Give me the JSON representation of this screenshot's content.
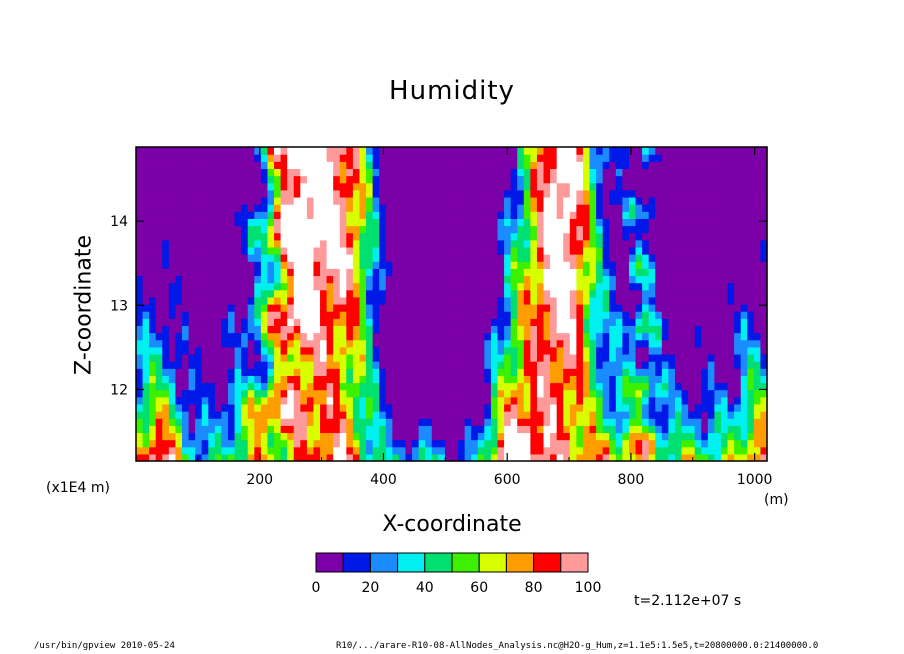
{
  "chart_data": {
    "type": "heatmap",
    "title": "Humidity",
    "xlabel": "X-coordinate",
    "ylabel": "Z-coordinate",
    "x_unit": "(m)",
    "y_scale_note": "(x1E4 m)",
    "xlim": [
      0,
      1020
    ],
    "ylim": [
      11.15,
      14.88
    ],
    "x_ticks": [
      200,
      400,
      600,
      800,
      1000
    ],
    "y_ticks": [
      12,
      13,
      14
    ],
    "colorbar": {
      "levels": [
        0,
        10,
        20,
        30,
        40,
        50,
        60,
        70,
        80,
        90,
        100
      ],
      "tick_labels": [
        "0",
        "20",
        "40",
        "60",
        "80",
        "100"
      ],
      "colors": [
        "#7b00a8",
        "#0018e8",
        "#1a8cff",
        "#00f0f0",
        "#00e070",
        "#3cf000",
        "#d8ff00",
        "#ff9c00",
        "#ff0000",
        "#ff9a9a"
      ],
      "above_max_color": "#ffffff"
    },
    "time_annotation": "t=2.112e+07 s",
    "grid": false,
    "field_description": "humidity low (0-10) in upper left and central upper regions; moist plumes near x=230-400 and x=640-730 reach upper boundary; bottom layer moist across domain"
  },
  "footer": {
    "program": "/usr/bin/gpview   2010-05-24",
    "source": "R10/.../arare-R10-08-AllNodes_Analysis.nc@H2O-g_Hum,z=1.1e5:1.5e5,t=20800000.0:21400000.0"
  }
}
